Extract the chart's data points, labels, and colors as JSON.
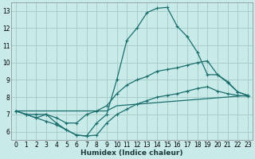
{
  "xlabel": "Humidex (Indice chaleur)",
  "xlim": [
    -0.5,
    23.5
  ],
  "ylim": [
    5.5,
    13.5
  ],
  "yticks": [
    6,
    7,
    8,
    9,
    10,
    11,
    12,
    13
  ],
  "xticks": [
    0,
    1,
    2,
    3,
    4,
    5,
    6,
    7,
    8,
    9,
    10,
    11,
    12,
    13,
    14,
    15,
    16,
    17,
    18,
    19,
    20,
    21,
    22,
    23
  ],
  "bg_color": "#c8eae8",
  "grid_color": "#a8ceca",
  "line_color": "#1a6e6e",
  "line1_x": [
    0,
    1,
    2,
    3,
    4,
    5,
    6,
    7,
    8,
    9,
    10,
    11,
    12,
    13,
    14,
    15,
    16,
    17,
    18,
    19,
    20,
    21,
    22,
    23
  ],
  "line1_y": [
    7.2,
    7.0,
    6.8,
    7.0,
    6.5,
    6.1,
    5.8,
    5.75,
    6.5,
    7.0,
    9.0,
    11.3,
    12.0,
    12.9,
    13.15,
    13.2,
    12.1,
    11.5,
    10.6,
    9.3,
    9.3,
    8.85,
    8.3,
    8.1
  ],
  "line2_x": [
    0,
    1,
    2,
    3,
    4,
    5,
    6,
    7,
    8,
    9,
    10,
    11,
    12,
    13,
    14,
    15,
    16,
    17,
    18,
    19,
    20,
    21,
    22,
    23
  ],
  "line2_y": [
    7.2,
    7.0,
    7.0,
    7.0,
    6.8,
    6.5,
    6.5,
    7.0,
    7.2,
    7.5,
    8.2,
    8.7,
    9.0,
    9.2,
    9.5,
    9.6,
    9.7,
    9.85,
    10.0,
    10.1,
    9.3,
    8.9,
    8.3,
    8.1
  ],
  "line3_x": [
    0,
    9,
    10,
    23
  ],
  "line3_y": [
    7.2,
    7.2,
    7.5,
    8.1
  ],
  "line4_x": [
    0,
    1,
    2,
    3,
    4,
    5,
    6,
    7,
    8,
    9,
    10,
    11,
    12,
    13,
    14,
    15,
    16,
    17,
    18,
    19,
    20,
    21,
    22,
    23
  ],
  "line4_y": [
    7.2,
    7.0,
    6.8,
    6.6,
    6.4,
    6.1,
    5.8,
    5.75,
    5.8,
    6.5,
    7.0,
    7.3,
    7.6,
    7.8,
    8.0,
    8.1,
    8.2,
    8.35,
    8.5,
    8.6,
    8.35,
    8.2,
    8.1,
    8.05
  ]
}
